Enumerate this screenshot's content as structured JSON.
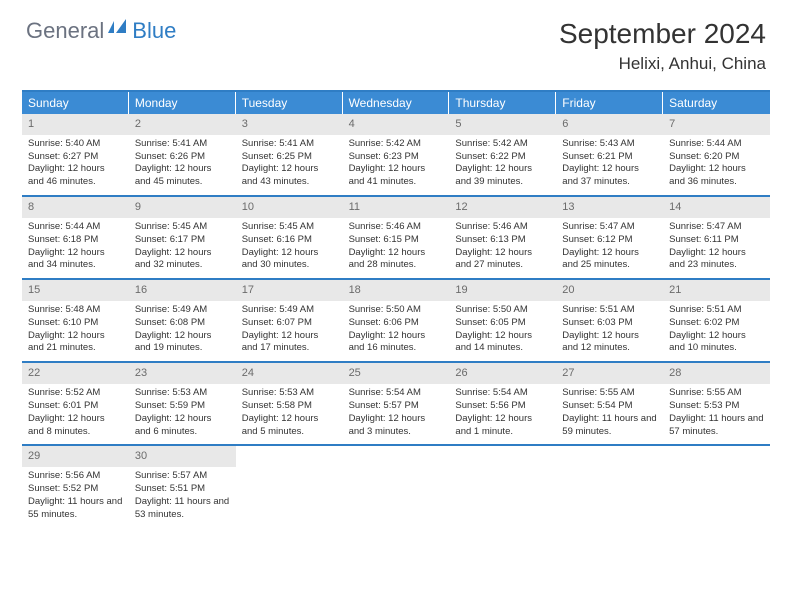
{
  "logo": {
    "general": "General",
    "blue": "Blue"
  },
  "title": "September 2024",
  "location": "Helixi, Anhui, China",
  "colors": {
    "accent": "#3b8bd4",
    "rule": "#2f7dc4",
    "daynum_bg": "#e8e8e8",
    "daynum_fg": "#6b6b6b",
    "text": "#333333",
    "bg": "#ffffff"
  },
  "days_of_week": [
    "Sunday",
    "Monday",
    "Tuesday",
    "Wednesday",
    "Thursday",
    "Friday",
    "Saturday"
  ],
  "weeks": [
    [
      {
        "n": "1",
        "sunrise": "Sunrise: 5:40 AM",
        "sunset": "Sunset: 6:27 PM",
        "daylight": "Daylight: 12 hours and 46 minutes."
      },
      {
        "n": "2",
        "sunrise": "Sunrise: 5:41 AM",
        "sunset": "Sunset: 6:26 PM",
        "daylight": "Daylight: 12 hours and 45 minutes."
      },
      {
        "n": "3",
        "sunrise": "Sunrise: 5:41 AM",
        "sunset": "Sunset: 6:25 PM",
        "daylight": "Daylight: 12 hours and 43 minutes."
      },
      {
        "n": "4",
        "sunrise": "Sunrise: 5:42 AM",
        "sunset": "Sunset: 6:23 PM",
        "daylight": "Daylight: 12 hours and 41 minutes."
      },
      {
        "n": "5",
        "sunrise": "Sunrise: 5:42 AM",
        "sunset": "Sunset: 6:22 PM",
        "daylight": "Daylight: 12 hours and 39 minutes."
      },
      {
        "n": "6",
        "sunrise": "Sunrise: 5:43 AM",
        "sunset": "Sunset: 6:21 PM",
        "daylight": "Daylight: 12 hours and 37 minutes."
      },
      {
        "n": "7",
        "sunrise": "Sunrise: 5:44 AM",
        "sunset": "Sunset: 6:20 PM",
        "daylight": "Daylight: 12 hours and 36 minutes."
      }
    ],
    [
      {
        "n": "8",
        "sunrise": "Sunrise: 5:44 AM",
        "sunset": "Sunset: 6:18 PM",
        "daylight": "Daylight: 12 hours and 34 minutes."
      },
      {
        "n": "9",
        "sunrise": "Sunrise: 5:45 AM",
        "sunset": "Sunset: 6:17 PM",
        "daylight": "Daylight: 12 hours and 32 minutes."
      },
      {
        "n": "10",
        "sunrise": "Sunrise: 5:45 AM",
        "sunset": "Sunset: 6:16 PM",
        "daylight": "Daylight: 12 hours and 30 minutes."
      },
      {
        "n": "11",
        "sunrise": "Sunrise: 5:46 AM",
        "sunset": "Sunset: 6:15 PM",
        "daylight": "Daylight: 12 hours and 28 minutes."
      },
      {
        "n": "12",
        "sunrise": "Sunrise: 5:46 AM",
        "sunset": "Sunset: 6:13 PM",
        "daylight": "Daylight: 12 hours and 27 minutes."
      },
      {
        "n": "13",
        "sunrise": "Sunrise: 5:47 AM",
        "sunset": "Sunset: 6:12 PM",
        "daylight": "Daylight: 12 hours and 25 minutes."
      },
      {
        "n": "14",
        "sunrise": "Sunrise: 5:47 AM",
        "sunset": "Sunset: 6:11 PM",
        "daylight": "Daylight: 12 hours and 23 minutes."
      }
    ],
    [
      {
        "n": "15",
        "sunrise": "Sunrise: 5:48 AM",
        "sunset": "Sunset: 6:10 PM",
        "daylight": "Daylight: 12 hours and 21 minutes."
      },
      {
        "n": "16",
        "sunrise": "Sunrise: 5:49 AM",
        "sunset": "Sunset: 6:08 PM",
        "daylight": "Daylight: 12 hours and 19 minutes."
      },
      {
        "n": "17",
        "sunrise": "Sunrise: 5:49 AM",
        "sunset": "Sunset: 6:07 PM",
        "daylight": "Daylight: 12 hours and 17 minutes."
      },
      {
        "n": "18",
        "sunrise": "Sunrise: 5:50 AM",
        "sunset": "Sunset: 6:06 PM",
        "daylight": "Daylight: 12 hours and 16 minutes."
      },
      {
        "n": "19",
        "sunrise": "Sunrise: 5:50 AM",
        "sunset": "Sunset: 6:05 PM",
        "daylight": "Daylight: 12 hours and 14 minutes."
      },
      {
        "n": "20",
        "sunrise": "Sunrise: 5:51 AM",
        "sunset": "Sunset: 6:03 PM",
        "daylight": "Daylight: 12 hours and 12 minutes."
      },
      {
        "n": "21",
        "sunrise": "Sunrise: 5:51 AM",
        "sunset": "Sunset: 6:02 PM",
        "daylight": "Daylight: 12 hours and 10 minutes."
      }
    ],
    [
      {
        "n": "22",
        "sunrise": "Sunrise: 5:52 AM",
        "sunset": "Sunset: 6:01 PM",
        "daylight": "Daylight: 12 hours and 8 minutes."
      },
      {
        "n": "23",
        "sunrise": "Sunrise: 5:53 AM",
        "sunset": "Sunset: 5:59 PM",
        "daylight": "Daylight: 12 hours and 6 minutes."
      },
      {
        "n": "24",
        "sunrise": "Sunrise: 5:53 AM",
        "sunset": "Sunset: 5:58 PM",
        "daylight": "Daylight: 12 hours and 5 minutes."
      },
      {
        "n": "25",
        "sunrise": "Sunrise: 5:54 AM",
        "sunset": "Sunset: 5:57 PM",
        "daylight": "Daylight: 12 hours and 3 minutes."
      },
      {
        "n": "26",
        "sunrise": "Sunrise: 5:54 AM",
        "sunset": "Sunset: 5:56 PM",
        "daylight": "Daylight: 12 hours and 1 minute."
      },
      {
        "n": "27",
        "sunrise": "Sunrise: 5:55 AM",
        "sunset": "Sunset: 5:54 PM",
        "daylight": "Daylight: 11 hours and 59 minutes."
      },
      {
        "n": "28",
        "sunrise": "Sunrise: 5:55 AM",
        "sunset": "Sunset: 5:53 PM",
        "daylight": "Daylight: 11 hours and 57 minutes."
      }
    ],
    [
      {
        "n": "29",
        "sunrise": "Sunrise: 5:56 AM",
        "sunset": "Sunset: 5:52 PM",
        "daylight": "Daylight: 11 hours and 55 minutes."
      },
      {
        "n": "30",
        "sunrise": "Sunrise: 5:57 AM",
        "sunset": "Sunset: 5:51 PM",
        "daylight": "Daylight: 11 hours and 53 minutes."
      },
      null,
      null,
      null,
      null,
      null
    ]
  ]
}
